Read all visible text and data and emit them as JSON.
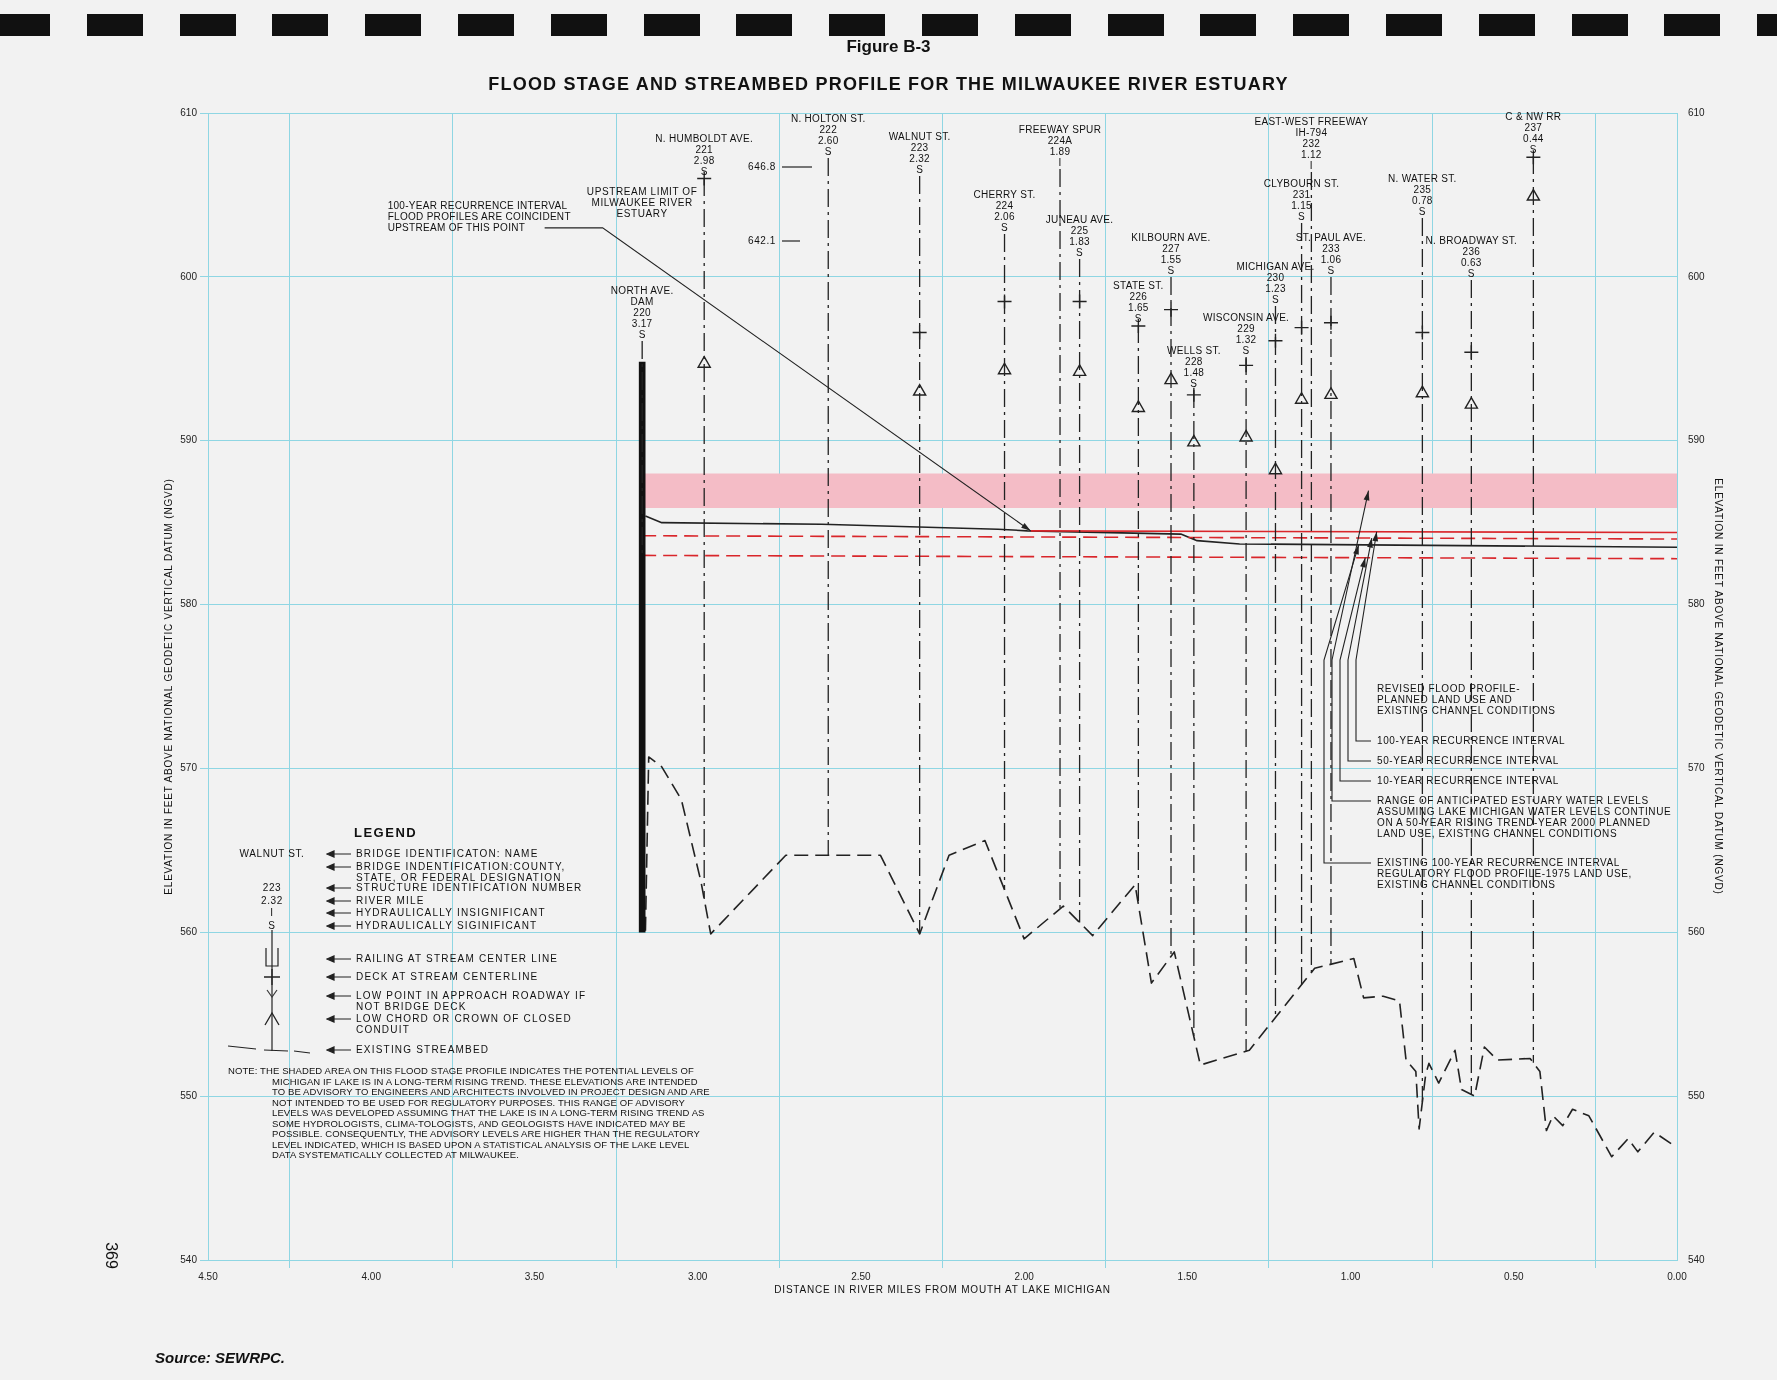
{
  "chart_data": {
    "type": "line",
    "subtitle": "Figure B-3",
    "title": "FLOOD STAGE AND STREAMBED PROFILE FOR THE MILWAUKEE RIVER ESTUARY",
    "xlabel": "DISTANCE IN RIVER MILES FROM MOUTH AT LAKE MICHIGAN",
    "ylabel": "ELEVATION IN FEET ABOVE NATIONAL GEODETIC VERTICAL DATUM (NGVD)",
    "y2label": "ELEVATION IN FEET ABOVE NATIONAL GEODETIC VERTICAL DATUM (NGVD)",
    "legend_title": "LEGEND",
    "legend": "bottom left",
    "grid": true,
    "xlim": [
      4.5,
      0
    ],
    "xticks": [
      {
        "value": 4.5,
        "label": "4.50"
      },
      {
        "value": 4,
        "label": "4.00"
      },
      {
        "value": 3.5,
        "label": "3.50"
      },
      {
        "value": 3,
        "label": "3.00"
      },
      {
        "value": 2.5,
        "label": "2.50"
      },
      {
        "value": 2,
        "label": "2.00"
      },
      {
        "value": 1.5,
        "label": "1.50"
      },
      {
        "value": 1,
        "label": "1.00"
      },
      {
        "value": 0.5,
        "label": "0.50"
      },
      {
        "value": 0,
        "label": "0.00"
      }
    ],
    "ylim": [
      540,
      610
    ],
    "yticks": [
      540,
      550,
      560,
      570,
      580,
      590,
      600,
      610
    ],
    "y2lim": [
      540,
      610
    ],
    "y2ticks": [
      540,
      550,
      560,
      570,
      580,
      590,
      600,
      610
    ],
    "series": [
      {
        "name": "100-YEAR RECURRENCE INTERVAL",
        "color": "#d9262b",
        "line_style": "solid",
        "x": [
          1.98,
          0
        ],
        "values": [
          584.5,
          584.4
        ]
      },
      {
        "name": "50-YEAR RECURRENCE INTERVAL",
        "color": "#d9262b",
        "line_style": "dashed",
        "x": [
          3.17,
          0
        ],
        "values": [
          584.2,
          584.0
        ]
      },
      {
        "name": "10-YEAR RECURRENCE INTERVAL",
        "color": "#d9262b",
        "line_style": "dashed",
        "x": [
          3.17,
          0
        ],
        "values": [
          583.0,
          582.8
        ]
      },
      {
        "name": "EXISTING 100-YEAR RECURRENCE INTERVAL REGULATORY FLOOD PROFILE-1975 LAND USE, EXISTING CHANNEL CONDITIONS",
        "color": "#222222",
        "line_style": "solid",
        "x": [
          3.16,
          3.11,
          2.62,
          2.08,
          1.99,
          1.52,
          1.47,
          1.34,
          0
        ],
        "values": [
          585.4,
          585.0,
          584.9,
          584.6,
          584.5,
          584.3,
          583.9,
          583.7,
          583.5
        ]
      },
      {
        "color": "#222222",
        "line_style": "dashed",
        "x": [
          3.16,
          3.15,
          3.11,
          3.05,
          2.99,
          2.96,
          2.73,
          2.44,
          2.32,
          2.23,
          2.12,
          2.0,
          1.88,
          1.79,
          1.66,
          1.61,
          1.54,
          1.46,
          1.31,
          1.11,
          0.99,
          0.96,
          0.9,
          0.85,
          0.83,
          0.8,
          0.79,
          0.77,
          0.76,
          0.73,
          0.68,
          0.66,
          0.62,
          0.59,
          0.55,
          0.45,
          0.42,
          0.4,
          0.38,
          0.35,
          0.32,
          0.27,
          0.2,
          0.15,
          0.12,
          0.07,
          0.01
        ],
        "values": [
          560.1,
          570.7,
          570.1,
          568.1,
          563.1,
          559.9,
          564.7,
          564.7,
          559.9,
          564.7,
          565.6,
          559.6,
          561.6,
          559.8,
          562.9,
          556.9,
          558.8,
          551.9,
          552.8,
          557.8,
          558.4,
          556.0,
          556.1,
          555.8,
          552.2,
          551.5,
          548.0,
          551.3,
          552.0,
          550.8,
          552.8,
          550.4,
          550.0,
          553.0,
          552.2,
          552.3,
          551.5,
          547.9,
          548.8,
          548.2,
          549.2,
          548.8,
          546.3,
          547.4,
          546.6,
          547.8,
          547.0
        ]
      },
      {
        "type": "bar",
        "color": "#111111",
        "x": [
          3.17
        ],
        "base": [
          560
        ],
        "values": [
          34.8
        ]
      },
      {
        "type": "scatter",
        "name": "DECK AT STREAM CENTERLINE",
        "color": "#222222",
        "marker": "cross",
        "x": [
          2.98,
          2.32,
          2.06,
          1.83,
          1.65,
          1.55,
          1.48,
          1.32,
          1.23,
          1.15,
          1.06,
          0.78,
          0.63,
          0.44
        ],
        "values": [
          606.0,
          596.6,
          598.5,
          598.5,
          597.0,
          598.0,
          592.8,
          594.6,
          596.1,
          596.9,
          597.2,
          596.6,
          595.4,
          607.3
        ]
      },
      {
        "type": "scatter",
        "name": "LOW CHORD OR CROWN OF CLOSED CONDUIT",
        "color": "#222222",
        "marker": "triangle",
        "x": [
          2.98,
          2.32,
          2.06,
          1.83,
          1.65,
          1.55,
          1.48,
          1.32,
          1.23,
          1.15,
          1.06,
          0.78,
          0.63,
          0.44
        ],
        "values": [
          594.7,
          593.0,
          594.3,
          594.2,
          592.0,
          593.7,
          589.9,
          590.2,
          588.2,
          592.5,
          592.8,
          592.9,
          592.2,
          604.9
        ]
      }
    ],
    "bands": [
      {
        "axis": "y",
        "from": 585.9,
        "to": 588.0,
        "label": "RANGE OF ANTICIPATED ESTUARY WATER LEVELS ASSUMING LAKE MICHIGAN WATER LEVELS CONTINUE ON A 50-YEAR RISING TREND-YEAR 2000 PLANNED LAND USE, EXISTING CHANNEL CONDITIONS",
        "color": "#f4bcc6"
      }
    ],
    "ref_lines": [
      {
        "axis": "x",
        "value": 3.17,
        "label": "NORTH AVE.\nDAM\n220\n3.17\nS",
        "line_style": "dashed"
      },
      {
        "axis": "x",
        "value": 2.98,
        "label": "N. HUMBOLDT AVE.\n221\n2.98\nS",
        "line_style": "dashed"
      },
      {
        "axis": "x",
        "value": 2.6,
        "label": "N. HOLTON ST.\n222\n2.60\nS",
        "line_style": "dashed"
      },
      {
        "axis": "x",
        "value": 2.32,
        "label": "WALNUT ST.\n223\n2.32\nS",
        "line_style": "dashed"
      },
      {
        "axis": "x",
        "value": 2.06,
        "label": "CHERRY ST.\n224\n2.06\nS",
        "line_style": "dashed"
      },
      {
        "axis": "x",
        "value": 1.89,
        "label": "FREEWAY SPUR\n224A\n1.89\nI",
        "line_style": "dashed"
      },
      {
        "axis": "x",
        "value": 1.83,
        "label": "JUNEAU AVE.\n225\n1.83\nS",
        "line_style": "dashed"
      },
      {
        "axis": "x",
        "value": 1.65,
        "label": "STATE ST.\n226\n1.65\nS",
        "line_style": "dashed"
      },
      {
        "axis": "x",
        "value": 1.55,
        "label": "KILBOURN AVE.\n227\n1.55\nS",
        "line_style": "dashed"
      },
      {
        "axis": "x",
        "value": 1.48,
        "label": "WELLS ST.\n228\n1.48\nS",
        "line_style": "dashed"
      },
      {
        "axis": "x",
        "value": 1.32,
        "label": "WISCONSIN AVE.\n229\n1.32\nS",
        "line_style": "dashed"
      },
      {
        "axis": "x",
        "value": 1.23,
        "label": "MICHIGAN AVE.\n230\n1.23\nS",
        "line_style": "dashed"
      },
      {
        "axis": "x",
        "value": 1.15,
        "label": "CLYBOURN ST.\n231\n1.15\nS",
        "line_style": "dashed"
      },
      {
        "axis": "x",
        "value": 1.12,
        "label": "EAST-WEST FREEWAY\nIH-794\n232\n1.12\nI",
        "line_style": "dashed"
      },
      {
        "axis": "x",
        "value": 1.06,
        "label": "ST. PAUL AVE.\n233\n1.06\nS",
        "line_style": "dashed"
      },
      {
        "axis": "x",
        "value": 0.78,
        "label": "N. WATER ST.\n235\n0.78\nS",
        "line_style": "dashed"
      },
      {
        "axis": "x",
        "value": 0.63,
        "label": "N. BROADWAY ST.\n236\n0.63\nS",
        "line_style": "dashed"
      },
      {
        "axis": "x",
        "value": 0.44,
        "label": "C & NW RR\n237\n0.44\nS",
        "line_style": "dashed"
      }
    ],
    "annotations": [
      "Source: SEWRPC.",
      "369",
      "NOTE: THE SHADED AREA ON THIS FLOOD STAGE PROFILE INDICATES THE POTENTIAL LEVELS OF MICHIGAN IF LAKE IS IN A LONG-TERM RISING TREND. THESE ELEVATIONS ARE INTENDED TO BE ADVISORY TO ENGINEERS AND ARCHITECTS INVOLVED IN PROJECT DESIGN AND ARE NOT INTENDED TO BE USED FOR REGULATORY PURPOSES. THIS RANGE OF ADVISORY LEVELS WAS DEVELOPED ASSUMING THAT THE LAKE IS IN A LONG-TERM RISING TREND AS SOME HYDROLOGISTS, CLIMA-TOLOGISTS, AND GEOLOGISTS HAVE INDICATED MAY BE POSSIBLE. CONSEQUENTLY, THE ADVISORY LEVELS ARE HIGHER THAN THE REGULATORY LEVEL INDICATED, WHICH IS BASED UPON A STATISTICAL ANALYSIS OF THE LAKE LEVEL DATA SYSTEMATICALLY COLLECTED AT MILWAUKEE.",
      "UPSTREAM LIMIT OF MILWAUKEE RIVER ESTUARY",
      {
        "text": "100-YEAR RECURRENCE INTERVAL FLOOD PROFILES ARE COINCIDENT UPSTREAM OF THIS POINT",
        "x": 1.98,
        "y": 584.5
      },
      "646.8",
      "642.1",
      "REVISED FLOOD PROFILE-PLANNED LAND USE AND EXISTING CHANNEL CONDITIONS",
      "WALNUT ST.",
      "223",
      "2.32",
      "I",
      "S",
      "BRIDGE IDENTIFICATON: NAME",
      "BRIDGE INDENTIFICATION:COUNTY, STATE, OR FEDERAL DESIGNATION",
      "STRUCTURE IDENTIFICATION NUMBER",
      "RIVER MILE",
      "HYDRAULICALLY INSIGNIFICANT",
      "HYDRAULICALLY SIGINIFICANT",
      "RAILING AT STREAM CENTER LINE",
      "LOW POINT IN APPROACH ROADWAY IF NOT BRIDGE DECK",
      "EXISTING STREAMBED"
    ]
  }
}
